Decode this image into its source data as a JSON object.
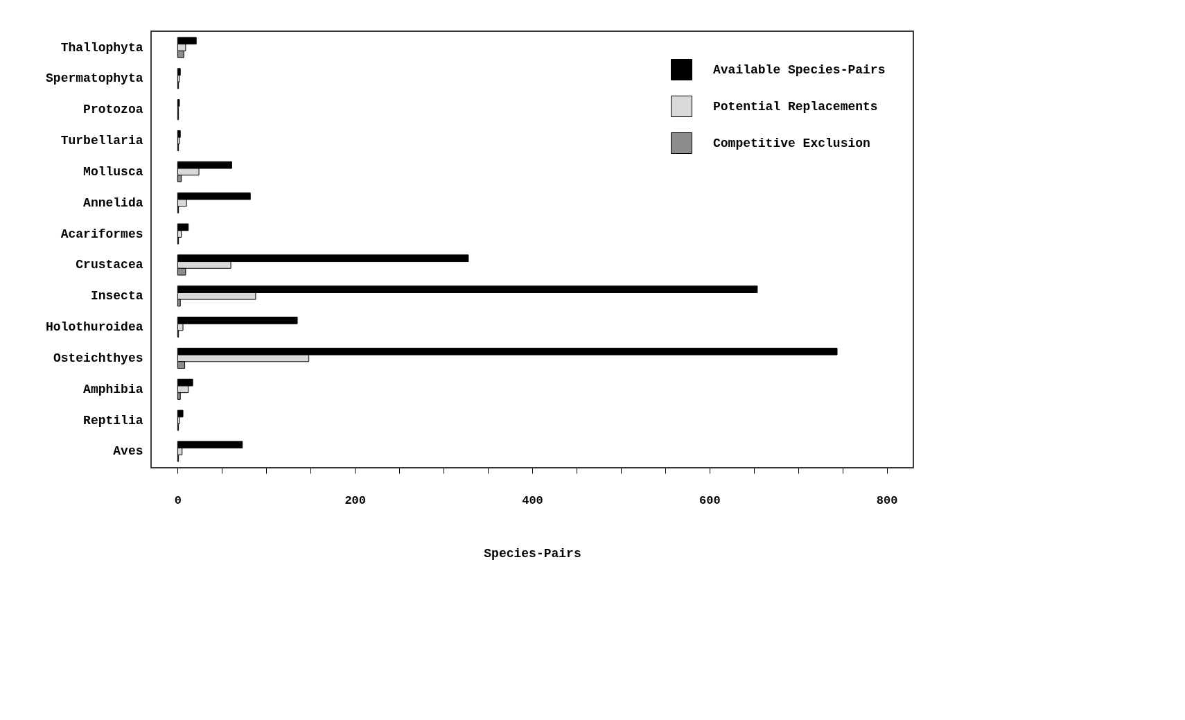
{
  "chart_data": {
    "type": "bar",
    "orientation": "horizontal",
    "xlabel": "Species-Pairs",
    "categories": [
      "Thallophyta",
      "Spermatophyta",
      "Protozoa",
      "Turbellaria",
      "Mollusca",
      "Annelida",
      "Acariformes",
      "Crustacea",
      "Insecta",
      "Holothuroidea",
      "Osteichthyes",
      "Amphibia",
      "Reptilia",
      "Aves"
    ],
    "series": [
      {
        "name": "Available Species-Pairs",
        "color": "#000000",
        "values": [
          21,
          3,
          2,
          3,
          61,
          82,
          12,
          328,
          654,
          135,
          744,
          17,
          6,
          73
        ]
      },
      {
        "name": "Potential Replacements",
        "color": "#d9d9d9",
        "values": [
          9,
          2,
          1,
          2,
          24,
          10,
          4,
          60,
          88,
          6,
          148,
          12,
          2,
          5
        ]
      },
      {
        "name": "Competitive Exclusion",
        "color": "#8c8c8c",
        "values": [
          7,
          1,
          1,
          1,
          4,
          1,
          1,
          9,
          3,
          1,
          8,
          3,
          1,
          1
        ]
      }
    ],
    "xlim": [
      -30,
      830
    ],
    "xticks": [
      0,
      {
        "value": 50,
        "label": null
      },
      {
        "value": 100,
        "label": null
      },
      {
        "value": 150,
        "label": null
      },
      200,
      {
        "value": 250,
        "label": null
      },
      {
        "value": 300,
        "label": null
      },
      {
        "value": 350,
        "label": null
      },
      400,
      {
        "value": 450,
        "label": null
      },
      {
        "value": 500,
        "label": null
      },
      {
        "value": 550,
        "label": null
      },
      600,
      {
        "value": 650,
        "label": null
      },
      {
        "value": 700,
        "label": null
      },
      {
        "value": 750,
        "label": null
      },
      800
    ],
    "legend": "top right",
    "grid": false
  }
}
